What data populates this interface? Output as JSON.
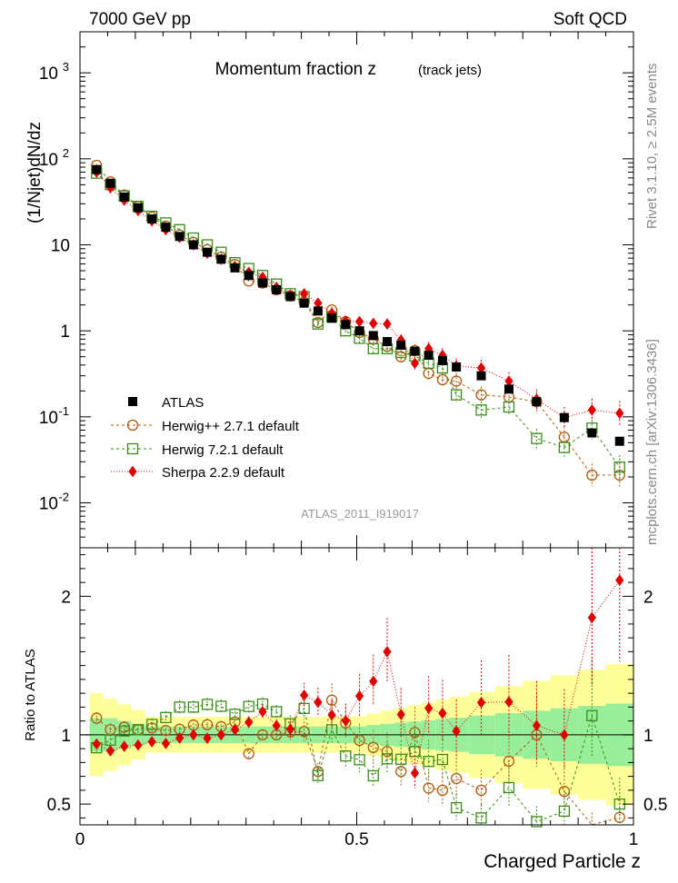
{
  "header": {
    "left_label": "7000 GeV pp",
    "right_label": "Soft QCD",
    "side_top": "Rivet 3.1.10, ≥ 2.5M events",
    "side_bottom": "mcplots.cern.ch [arXiv:1306.3436]"
  },
  "chart_data": {
    "type": "scatter",
    "title": "Momentum fraction z",
    "subtitle": "(track jets)",
    "analysis_tag": "ATLAS_2011_I919017",
    "xlabel": "Charged Particle z",
    "ylabel": "(1/Njet)dN/dz",
    "ratio_ylabel": "Ratio to ATLAS",
    "xlim": [
      0,
      1.0
    ],
    "ylim": [
      0.003,
      3000
    ],
    "yscale": "log",
    "ratio_ylim": [
      0.35,
      2.35
    ],
    "x_ticks": [
      "0",
      "0.5",
      "1"
    ],
    "y_ticks": [
      "10^-2",
      "10^-1",
      "1",
      "10",
      "10^2",
      "10^3"
    ],
    "ratio_ticks": [
      "0.5",
      "1",
      "2"
    ],
    "legend": [
      {
        "label": "ATLAS",
        "key": "data"
      },
      {
        "label": "Herwig++ 2.7.1 default",
        "key": "herwigpp"
      },
      {
        "label": "Herwig 7.2.1 default",
        "key": "herwig7"
      },
      {
        "label": "Sherpa 2.2.9 default",
        "key": "sherpa"
      }
    ],
    "x": [
      0.03,
      0.055,
      0.08,
      0.105,
      0.13,
      0.155,
      0.18,
      0.205,
      0.23,
      0.255,
      0.28,
      0.305,
      0.33,
      0.355,
      0.38,
      0.405,
      0.43,
      0.455,
      0.48,
      0.505,
      0.53,
      0.555,
      0.58,
      0.605,
      0.63,
      0.655,
      0.68,
      0.725,
      0.775,
      0.825,
      0.875,
      0.925,
      0.975
    ],
    "series": [
      {
        "name": "ATLAS",
        "key": "data",
        "values": [
          75,
          52,
          36,
          27,
          20,
          16,
          12.5,
          10,
          8.2,
          6.8,
          5.4,
          4.4,
          3.6,
          3.0,
          2.5,
          2.1,
          1.7,
          1.4,
          1.18,
          1.0,
          0.88,
          0.75,
          0.68,
          0.58,
          0.52,
          0.45,
          0.38,
          0.3,
          0.21,
          0.15,
          0.098,
          0.065,
          0.052
        ]
      },
      {
        "name": "Herwig++ 2.7.1 default",
        "key": "herwigpp",
        "values": [
          84,
          54,
          38,
          28,
          21,
          16.5,
          13,
          10.7,
          8.8,
          7.2,
          5.9,
          3.8,
          3.6,
          3.0,
          2.55,
          2.15,
          1.25,
          1.75,
          1.28,
          0.96,
          0.8,
          0.66,
          0.5,
          0.59,
          0.32,
          0.27,
          0.26,
          0.18,
          0.17,
          0.15,
          0.058,
          0.021,
          0.021
        ]
      },
      {
        "name": "Herwig 7.2.1 default",
        "key": "herwig7",
        "values": [
          68,
          50,
          37,
          28,
          21.5,
          18,
          15,
          12,
          10,
          8.2,
          6.2,
          5.3,
          4.4,
          3.5,
          2.7,
          2.5,
          1.2,
          1.45,
          1.0,
          0.82,
          0.62,
          0.62,
          0.56,
          0.51,
          0.42,
          0.37,
          0.18,
          0.12,
          0.13,
          0.056,
          0.044,
          0.074,
          0.026
        ]
      },
      {
        "name": "Sherpa 2.2.9 default",
        "key": "sherpa",
        "values": [
          70,
          46,
          33,
          25,
          19,
          15,
          12.2,
          10,
          8.0,
          6.8,
          5.6,
          4.8,
          4.2,
          3.2,
          2.6,
          2.7,
          2.1,
          1.6,
          1.3,
          1.28,
          1.22,
          1.2,
          0.78,
          0.42,
          0.62,
          0.52,
          0.39,
          0.37,
          0.26,
          0.16,
          0.098,
          0.12,
          0.11
        ]
      }
    ]
  }
}
